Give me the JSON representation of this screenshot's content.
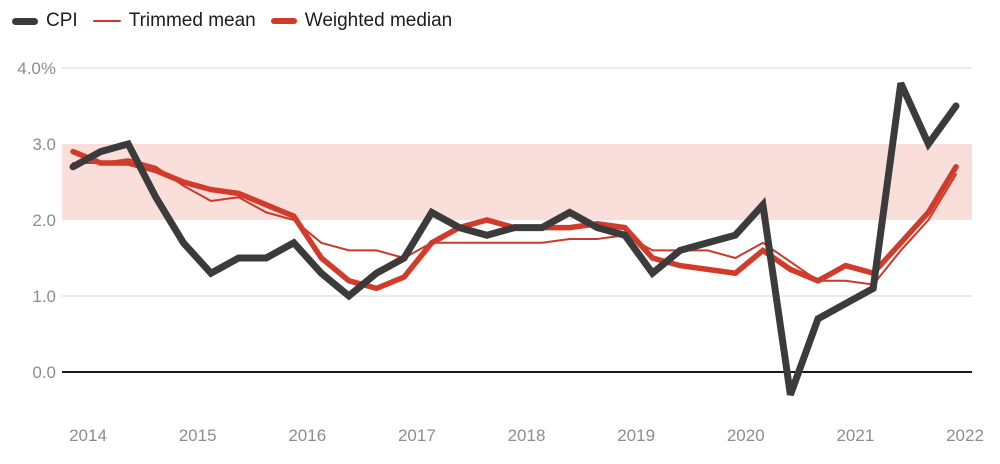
{
  "legend": {
    "items": [
      {
        "label": "CPI",
        "series_key": "cpi",
        "swatch": "thick-dark"
      },
      {
        "label": "Trimmed mean",
        "series_key": "trimmed_mean",
        "swatch": "thin-red"
      },
      {
        "label": "Weighted median",
        "series_key": "weighted_median",
        "swatch": "thick-red"
      }
    ]
  },
  "colors": {
    "cpi": "#3b3b3b",
    "trimmed_mean": "#c93a2c",
    "weighted_median": "#d23b2a",
    "target_band": "#f9deda",
    "gridline": "#e4e4e4",
    "zero_line": "#1a1a1a",
    "axis_label": "#8d8d8d",
    "legend_text": "#1d1d1d"
  },
  "chart_data": {
    "type": "line",
    "frequency": "quarterly",
    "x_tick_labels": [
      "2014",
      "2015",
      "2016",
      "2017",
      "2018",
      "2019",
      "2020",
      "2021",
      "2022"
    ],
    "y_ticks": [
      4.0,
      3.0,
      2.0,
      1.0,
      0.0
    ],
    "y_tick_labels": [
      "4.0%",
      "3.0",
      "2.0",
      "1.0",
      "0.0"
    ],
    "ylim": [
      -0.5,
      4.0
    ],
    "target_band": [
      2.0,
      3.0
    ],
    "grid": "horizontal-only",
    "legend_position": "top-left",
    "series": [
      {
        "name": "CPI",
        "values": [
          2.7,
          2.9,
          3.0,
          2.3,
          1.7,
          1.3,
          1.5,
          1.5,
          1.7,
          1.3,
          1.0,
          1.3,
          1.5,
          2.1,
          1.9,
          1.8,
          1.9,
          1.9,
          2.1,
          1.9,
          1.8,
          1.3,
          1.6,
          1.7,
          1.8,
          2.2,
          -0.3,
          0.7,
          0.9,
          1.1,
          3.8,
          3.0,
          3.5
        ]
      },
      {
        "name": "Trimmed mean",
        "values": [
          2.75,
          2.75,
          2.8,
          2.7,
          2.45,
          2.25,
          2.3,
          2.1,
          2.0,
          1.7,
          1.6,
          1.6,
          1.5,
          1.7,
          1.7,
          1.7,
          1.7,
          1.7,
          1.75,
          1.75,
          1.8,
          1.6,
          1.6,
          1.6,
          1.5,
          1.7,
          1.45,
          1.2,
          1.2,
          1.15,
          1.6,
          2.0,
          2.6
        ]
      },
      {
        "name": "Weighted median",
        "values": [
          2.9,
          2.75,
          2.75,
          2.65,
          2.5,
          2.4,
          2.35,
          2.2,
          2.05,
          1.5,
          1.2,
          1.1,
          1.25,
          1.7,
          1.9,
          2.0,
          1.9,
          1.9,
          1.9,
          1.95,
          1.9,
          1.5,
          1.4,
          1.35,
          1.3,
          1.6,
          1.35,
          1.2,
          1.4,
          1.3,
          1.7,
          2.1,
          2.7
        ]
      }
    ]
  }
}
